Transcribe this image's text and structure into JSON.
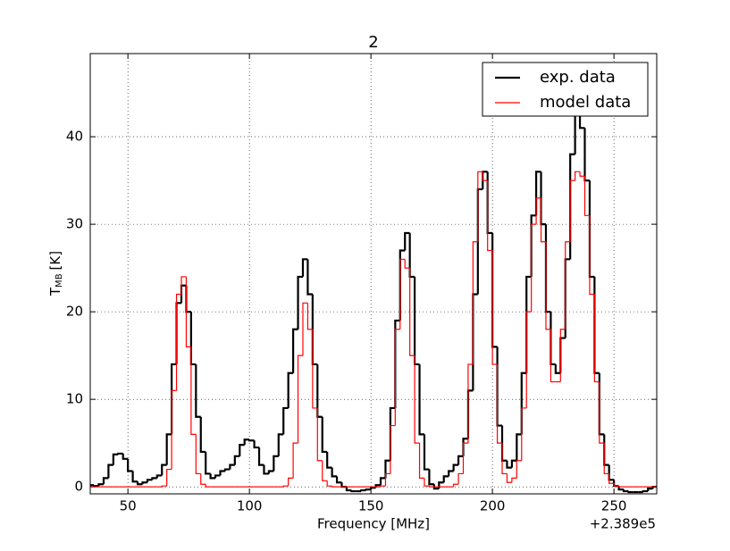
{
  "chart_data": {
    "type": "step",
    "title": "2",
    "xlabel": "Frequency [MHz]",
    "ylabel_parts": [
      "T",
      "MB",
      "[K]"
    ],
    "x_offset_label": "+2.389e5",
    "xlim": [
      34.5,
      267.6
    ],
    "ylim": [
      -0.8,
      49.5
    ],
    "xticks": [
      50,
      100,
      150,
      200,
      250
    ],
    "yticks": [
      0,
      10,
      20,
      30,
      40
    ],
    "grid": true,
    "legend": "upper right",
    "x": [
      35,
      37,
      39,
      41,
      43,
      45,
      47,
      49,
      51,
      53,
      55,
      57,
      59,
      61,
      63,
      65,
      67,
      69,
      71,
      73,
      75,
      77,
      79,
      81,
      83,
      85,
      87,
      89,
      91,
      93,
      95,
      97,
      99,
      101,
      103,
      105,
      107,
      109,
      111,
      113,
      115,
      117,
      119,
      121,
      123,
      125,
      127,
      129,
      131,
      133,
      135,
      137,
      139,
      141,
      143,
      145,
      147,
      149,
      151,
      153,
      155,
      157,
      159,
      161,
      163,
      165,
      167,
      169,
      171,
      173,
      175,
      177,
      179,
      181,
      183,
      185,
      187,
      189,
      191,
      193,
      195,
      197,
      199,
      201,
      203,
      205,
      207,
      209,
      211,
      213,
      215,
      217,
      219,
      221,
      223,
      225,
      227,
      229,
      231,
      233,
      235,
      237,
      239,
      241,
      243,
      245,
      247,
      249,
      251,
      253,
      255,
      257,
      259,
      261,
      263,
      265,
      267
    ],
    "series": [
      {
        "name": "exp. data",
        "color": "#000000",
        "width": 2.2,
        "values": [
          0.2,
          0.1,
          0.3,
          1.0,
          2.5,
          3.7,
          3.8,
          3.2,
          1.8,
          0.6,
          0.3,
          0.5,
          0.8,
          1.0,
          1.3,
          2.5,
          6,
          14,
          21,
          23,
          20,
          14,
          8,
          4,
          1.5,
          1.0,
          1.3,
          1.8,
          2.0,
          2.5,
          3.5,
          4.8,
          5.4,
          5.3,
          4.5,
          2.5,
          1.5,
          1.8,
          3.5,
          6,
          9,
          13,
          18,
          24,
          26,
          22,
          14,
          8,
          4,
          2.2,
          1.2,
          0.5,
          0,
          -0.4,
          -0.5,
          -0.5,
          -0.4,
          -0.3,
          -0.1,
          0.2,
          1,
          3,
          9,
          19,
          27,
          29,
          24,
          14,
          6,
          2,
          0.3,
          -0.2,
          0.5,
          1.2,
          1.8,
          2.5,
          3.5,
          5.5,
          11,
          22,
          34,
          36,
          29,
          16,
          7,
          3,
          2.2,
          3,
          6,
          13,
          24,
          31,
          36,
          30,
          20,
          14,
          13,
          17,
          26,
          38,
          43,
          41,
          35,
          24,
          13,
          6,
          2.5,
          0.8,
          0.1,
          -0.3,
          -0.5,
          -0.6,
          -0.6,
          -0.6,
          -0.5,
          -0.2,
          0
        ]
      },
      {
        "name": "model data",
        "color": "#ff0000",
        "width": 1.2,
        "values": [
          0,
          0,
          0,
          0,
          0,
          0,
          0,
          0,
          0,
          0,
          0,
          0,
          0,
          0,
          0,
          0.1,
          2,
          11,
          22,
          24,
          16,
          6,
          1.5,
          0.3,
          0,
          0,
          0,
          0,
          0,
          0,
          0,
          0,
          0,
          0,
          0,
          0,
          0,
          0,
          0,
          0,
          0.1,
          1,
          5,
          15,
          21,
          18,
          9,
          3,
          0.7,
          0.1,
          0,
          0,
          0,
          0,
          0,
          0,
          0,
          0,
          0,
          0,
          0.1,
          1.5,
          7,
          18,
          26,
          25,
          15,
          5,
          1,
          0.1,
          0,
          0,
          0,
          0,
          0,
          0.3,
          1.5,
          5,
          14,
          28,
          36,
          35,
          27,
          14,
          5,
          1.5,
          0.5,
          1,
          3,
          9,
          20,
          30,
          33,
          28,
          18,
          12,
          12,
          18,
          28,
          35,
          36,
          35.5,
          31,
          22,
          12,
          5,
          1.5,
          0.4,
          0.1,
          0,
          0,
          0,
          0,
          0,
          0,
          0,
          0
        ]
      }
    ]
  }
}
